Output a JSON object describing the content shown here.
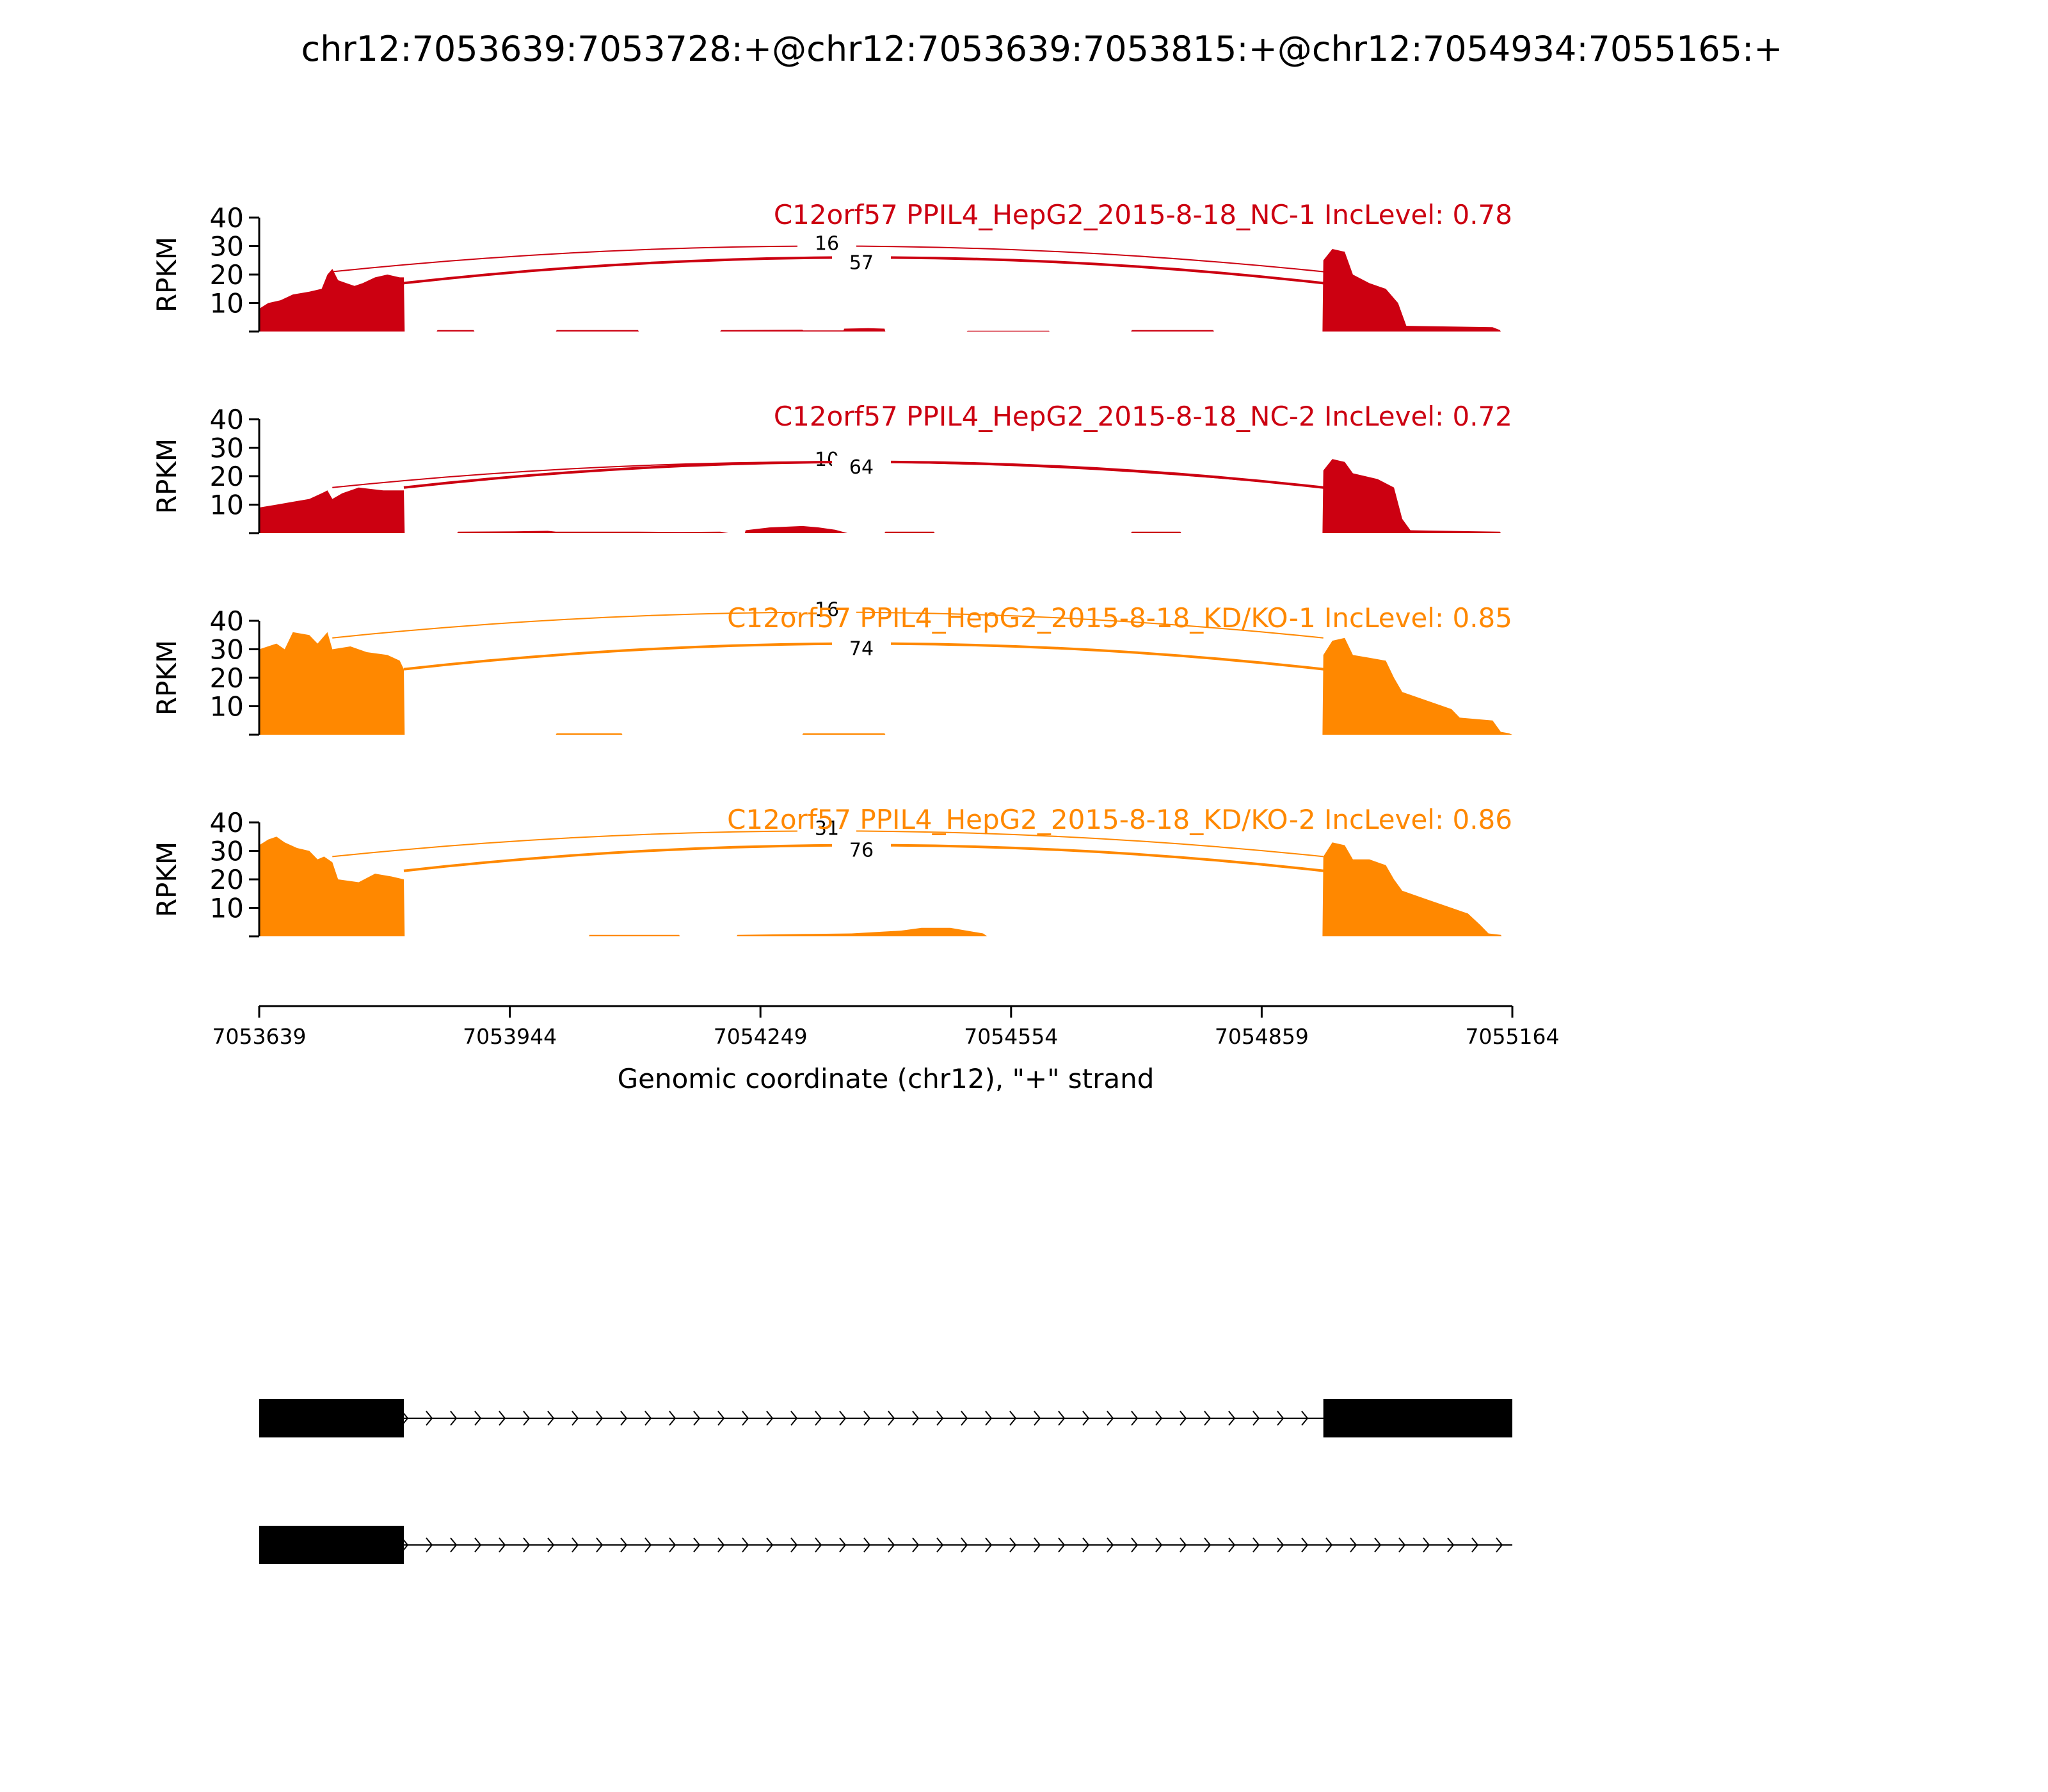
{
  "chart_data": {
    "type": "area",
    "title": "chr12:7053639:7053728:+@chr12:7053639:7053815:+@chr12:7054934:7055165:+",
    "xlabel": "Genomic coordinate (chr12), \"+\" strand",
    "ylabel": "RPKM",
    "xlim": [
      7053639,
      7055164
    ],
    "ylim": [
      0,
      40
    ],
    "x_ticks": [
      "7053639",
      "7053944",
      "7054249",
      "7054554",
      "7054859",
      "7055164"
    ],
    "y_ticks": [
      "10",
      "20",
      "30",
      "40"
    ],
    "exons": [
      [
        7053639,
        7053815
      ],
      [
        7054934,
        7055164
      ]
    ],
    "tracks": [
      {
        "label": "C12orf57 PPIL4_HepG2_2015-8-18_NC-1 IncLevel: 0.78",
        "color": "#cc0011",
        "junctions": [
          {
            "label": "16",
            "start": 7053728,
            "end": 7054934,
            "peak": 30
          },
          {
            "label": "57",
            "start": 7053815,
            "end": 7054934,
            "peak": 26
          }
        ],
        "coverage": [
          [
            7053639,
            8
          ],
          [
            7053650,
            10
          ],
          [
            7053665,
            11
          ],
          [
            7053680,
            13
          ],
          [
            7053700,
            14
          ],
          [
            7053715,
            15
          ],
          [
            7053722,
            20
          ],
          [
            7053728,
            22
          ],
          [
            7053735,
            18
          ],
          [
            7053745,
            17
          ],
          [
            7053755,
            16
          ],
          [
            7053765,
            17
          ],
          [
            7053780,
            19
          ],
          [
            7053795,
            20
          ],
          [
            7053810,
            19
          ],
          [
            7053815,
            19
          ],
          [
            7053816,
            0
          ],
          [
            7053855,
            0
          ],
          [
            7053856,
            0.5
          ],
          [
            7053900,
            0.5
          ],
          [
            7053901,
            0
          ],
          [
            7054000,
            0
          ],
          [
            7054001,
            0.5
          ],
          [
            7054100,
            0.5
          ],
          [
            7054101,
            0
          ],
          [
            7054200,
            0
          ],
          [
            7054201,
            0.5
          ],
          [
            7054300,
            0.6
          ],
          [
            7054301,
            0.4
          ],
          [
            7054350,
            0.4
          ],
          [
            7054351,
            1.0
          ],
          [
            7054380,
            1.2
          ],
          [
            7054400,
            1.0
          ],
          [
            7054401,
            0
          ],
          [
            7054500,
            0
          ],
          [
            7054501,
            0.3
          ],
          [
            7054600,
            0.3
          ],
          [
            7054601,
            0
          ],
          [
            7054700,
            0
          ],
          [
            7054701,
            0.5
          ],
          [
            7054800,
            0.5
          ],
          [
            7054801,
            0
          ],
          [
            7054933,
            0
          ],
          [
            7054934,
            25
          ],
          [
            7054945,
            29
          ],
          [
            7054960,
            28
          ],
          [
            7054970,
            20
          ],
          [
            7054990,
            17
          ],
          [
            7055010,
            15
          ],
          [
            7055025,
            10
          ],
          [
            7055035,
            2
          ],
          [
            7055140,
            1.5
          ],
          [
            7055149,
            0.5
          ],
          [
            7055150,
            0
          ]
        ]
      },
      {
        "label": "C12orf57 PPIL4_HepG2_2015-8-18_NC-2 IncLevel: 0.72",
        "color": "#cc0011",
        "junctions": [
          {
            "label": "10",
            "start": 7053728,
            "end": 7054934,
            "peak": 25
          },
          {
            "label": "64",
            "start": 7053815,
            "end": 7054934,
            "peak": 25
          }
        ],
        "coverage": [
          [
            7053639,
            9
          ],
          [
            7053660,
            10
          ],
          [
            7053680,
            11
          ],
          [
            7053700,
            12
          ],
          [
            7053715,
            14
          ],
          [
            7053722,
            15
          ],
          [
            7053728,
            12
          ],
          [
            7053740,
            14
          ],
          [
            7053760,
            16
          ],
          [
            7053790,
            15
          ],
          [
            7053815,
            15
          ],
          [
            7053816,
            0
          ],
          [
            7053880,
            0
          ],
          [
            7053881,
            0.5
          ],
          [
            7053950,
            0.6
          ],
          [
            7053990,
            0.8
          ],
          [
            7054000,
            0.5
          ],
          [
            7054100,
            0.5
          ],
          [
            7054150,
            0.4
          ],
          [
            7054200,
            0.5
          ],
          [
            7054210,
            0
          ],
          [
            7054230,
            0
          ],
          [
            7054231,
            1
          ],
          [
            7054260,
            2
          ],
          [
            7054300,
            2.5
          ],
          [
            7054320,
            2
          ],
          [
            7054340,
            1.2
          ],
          [
            7054355,
            0
          ],
          [
            7054400,
            0
          ],
          [
            7054401,
            0.5
          ],
          [
            7054460,
            0.5
          ],
          [
            7054461,
            0
          ],
          [
            7054700,
            0
          ],
          [
            7054701,
            0.5
          ],
          [
            7054760,
            0.5
          ],
          [
            7054761,
            0
          ],
          [
            7054933,
            0
          ],
          [
            7054934,
            22
          ],
          [
            7054945,
            26
          ],
          [
            7054960,
            25
          ],
          [
            7054970,
            21
          ],
          [
            7055000,
            19
          ],
          [
            7055020,
            16
          ],
          [
            7055030,
            5
          ],
          [
            7055040,
            1
          ],
          [
            7055149,
            0.5
          ],
          [
            7055150,
            0
          ]
        ]
      },
      {
        "label": "C12orf57 PPIL4_HepG2_2015-8-18_KD/KO-1 IncLevel: 0.85",
        "color": "#ff8800",
        "junctions": [
          {
            "label": "16",
            "start": 7053728,
            "end": 7054934,
            "peak": 43
          },
          {
            "label": "74",
            "start": 7053815,
            "end": 7054934,
            "peak": 32
          }
        ],
        "coverage": [
          [
            7053639,
            30
          ],
          [
            7053660,
            32
          ],
          [
            7053670,
            30
          ],
          [
            7053680,
            36
          ],
          [
            7053700,
            35
          ],
          [
            7053710,
            32
          ],
          [
            7053722,
            36
          ],
          [
            7053728,
            30
          ],
          [
            7053750,
            31
          ],
          [
            7053770,
            29
          ],
          [
            7053795,
            28
          ],
          [
            7053810,
            26
          ],
          [
            7053815,
            23
          ],
          [
            7053816,
            0
          ],
          [
            7054000,
            0
          ],
          [
            7054001,
            0.5
          ],
          [
            7054080,
            0.5
          ],
          [
            7054081,
            0
          ],
          [
            7054300,
            0
          ],
          [
            7054301,
            0.5
          ],
          [
            7054400,
            0.5
          ],
          [
            7054401,
            0
          ],
          [
            7054933,
            0
          ],
          [
            7054934,
            28
          ],
          [
            7054945,
            33
          ],
          [
            7054960,
            34
          ],
          [
            7054970,
            28
          ],
          [
            7054990,
            27
          ],
          [
            7055010,
            26
          ],
          [
            7055020,
            20
          ],
          [
            7055030,
            15
          ],
          [
            7055060,
            12
          ],
          [
            7055090,
            9
          ],
          [
            7055100,
            6
          ],
          [
            7055140,
            5
          ],
          [
            7055150,
            1
          ],
          [
            7055160,
            0.5
          ],
          [
            7055164,
            0
          ]
        ]
      },
      {
        "label": "C12orf57 PPIL4_HepG2_2015-8-18_KD/KO-2 IncLevel: 0.86",
        "color": "#ff8800",
        "junctions": [
          {
            "label": "31",
            "start": 7053728,
            "end": 7054934,
            "peak": 37
          },
          {
            "label": "76",
            "start": 7053815,
            "end": 7054934,
            "peak": 32
          }
        ],
        "coverage": [
          [
            7053639,
            32
          ],
          [
            7053650,
            34
          ],
          [
            7053660,
            35
          ],
          [
            7053670,
            33
          ],
          [
            7053685,
            31
          ],
          [
            7053700,
            30
          ],
          [
            7053710,
            27
          ],
          [
            7053718,
            28
          ],
          [
            7053728,
            26
          ],
          [
            7053735,
            20
          ],
          [
            7053760,
            19
          ],
          [
            7053780,
            22
          ],
          [
            7053800,
            21
          ],
          [
            7053815,
            20
          ],
          [
            7053816,
            0
          ],
          [
            7054040,
            0
          ],
          [
            7054041,
            0.5
          ],
          [
            7054150,
            0.5
          ],
          [
            7054151,
            0
          ],
          [
            7054220,
            0
          ],
          [
            7054221,
            0.5
          ],
          [
            7054300,
            0.8
          ],
          [
            7054360,
            1
          ],
          [
            7054420,
            2
          ],
          [
            7054445,
            3
          ],
          [
            7054480,
            3
          ],
          [
            7054500,
            2
          ],
          [
            7054520,
            1
          ],
          [
            7054525,
            0
          ],
          [
            7054933,
            0
          ],
          [
            7054934,
            28
          ],
          [
            7054945,
            33
          ],
          [
            7054960,
            32
          ],
          [
            7054970,
            27
          ],
          [
            7054990,
            27
          ],
          [
            7055010,
            25
          ],
          [
            7055020,
            20
          ],
          [
            7055030,
            16
          ],
          [
            7055060,
            13
          ],
          [
            7055090,
            10
          ],
          [
            7055110,
            8
          ],
          [
            7055125,
            4
          ],
          [
            7055135,
            1
          ],
          [
            7055150,
            0.5
          ],
          [
            7055151,
            0
          ]
        ]
      }
    ],
    "transcripts": [
      {
        "exons": [
          [
            7053639,
            7053815
          ],
          [
            7054934,
            7055164
          ]
        ],
        "line_end": 7055164
      },
      {
        "exons": [
          [
            7053639,
            7053815
          ]
        ],
        "line_end": 7055164
      }
    ]
  }
}
